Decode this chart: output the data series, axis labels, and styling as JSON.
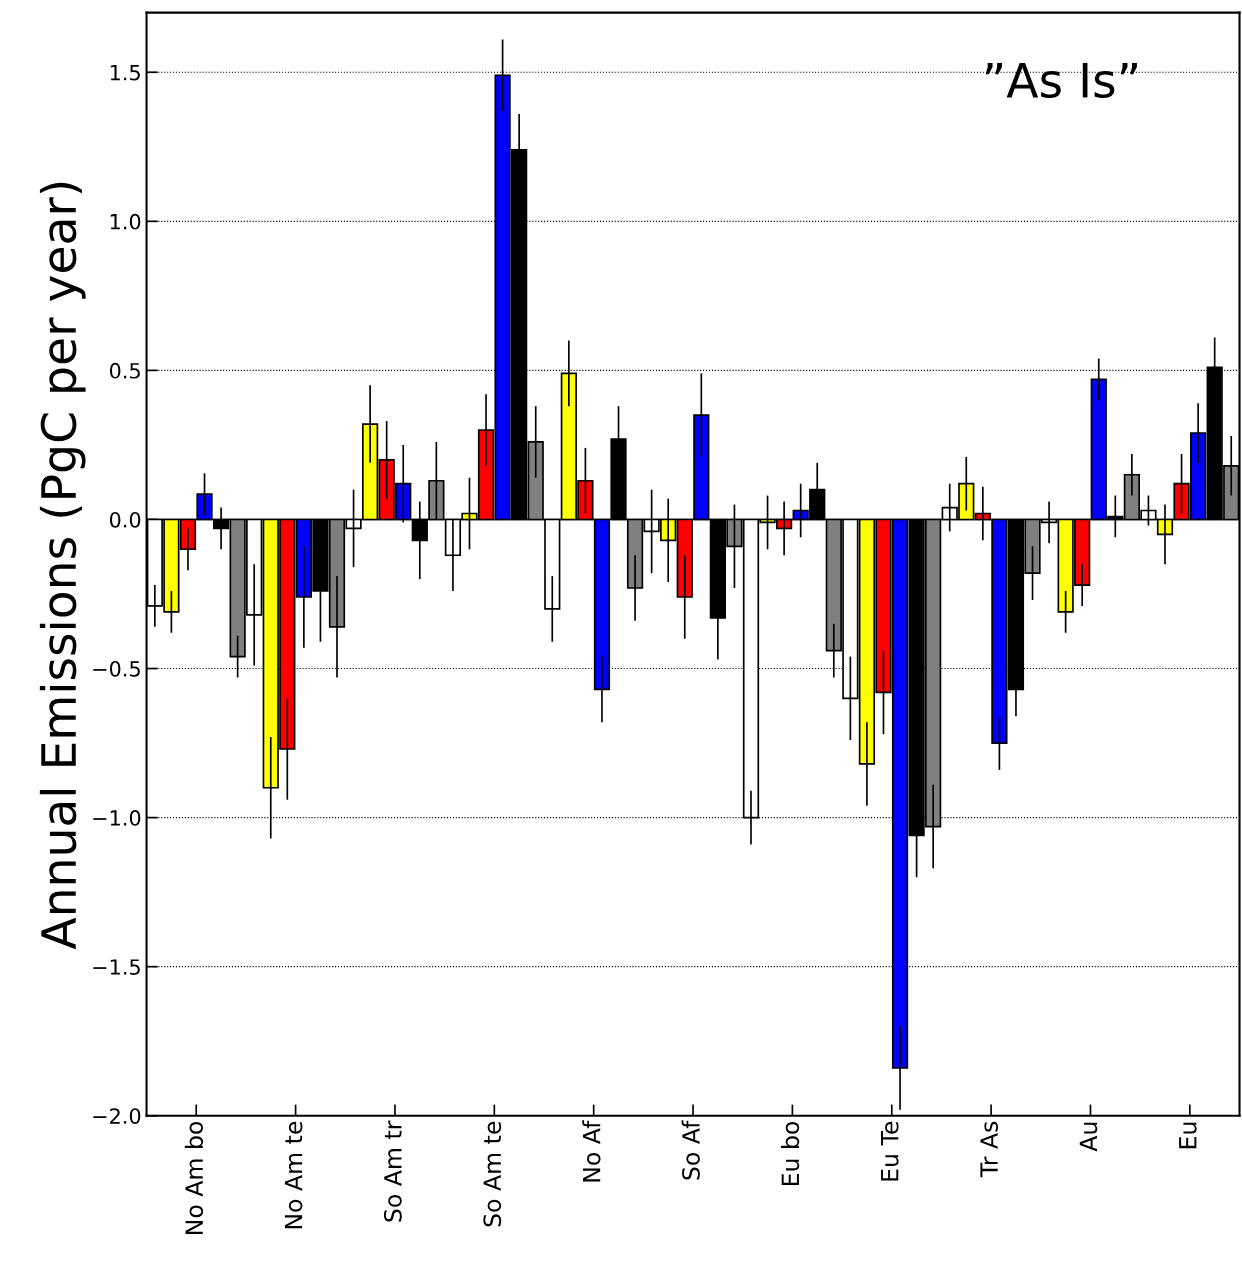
{
  "chart_data": {
    "type": "bar",
    "ylabel": "Annual Emissions (PgC per year)",
    "categories": [
      "No Am bo",
      "No Am te",
      "So Am tr",
      "So Am te",
      "No Af",
      "So Af",
      "Eu bo",
      "Eu Te",
      "Tr As",
      "Au",
      "Eu"
    ],
    "series": [
      {
        "color": "#ffffff",
        "values": [
          -0.29,
          -0.32,
          -0.03,
          -0.12,
          -0.3,
          -0.04,
          -1.0,
          -0.6,
          0.04,
          -0.01,
          0.03
        ],
        "errors": [
          0.07,
          0.17,
          0.13,
          0.12,
          0.11,
          0.14,
          0.09,
          0.14,
          0.08,
          0.07,
          0.05
        ]
      },
      {
        "color": "#ffff00",
        "values": [
          -0.31,
          -0.9,
          0.32,
          0.02,
          0.49,
          -0.07,
          -0.01,
          -0.82,
          0.12,
          -0.31,
          -0.05
        ],
        "errors": [
          0.07,
          0.17,
          0.13,
          0.12,
          0.11,
          0.14,
          0.09,
          0.14,
          0.09,
          0.07,
          0.1
        ]
      },
      {
        "color": "#ff0000",
        "values": [
          -0.1,
          -0.77,
          0.2,
          0.3,
          0.13,
          -0.26,
          -0.03,
          -0.58,
          0.02,
          -0.22,
          0.12
        ],
        "errors": [
          0.07,
          0.17,
          0.13,
          0.12,
          0.11,
          0.14,
          0.09,
          0.14,
          0.09,
          0.07,
          0.1
        ]
      },
      {
        "color": "#0000ff",
        "values": [
          0.085,
          -0.26,
          0.12,
          1.49,
          -0.57,
          0.35,
          0.03,
          -1.84,
          -0.75,
          0.47,
          0.29
        ],
        "errors": [
          0.07,
          0.17,
          0.13,
          0.12,
          0.11,
          0.14,
          0.09,
          0.14,
          0.09,
          0.07,
          0.1
        ]
      },
      {
        "color": "#000000",
        "values": [
          -0.03,
          -0.24,
          -0.07,
          1.24,
          0.27,
          -0.33,
          0.1,
          -1.06,
          -0.57,
          0.01,
          0.51
        ],
        "errors": [
          0.07,
          0.17,
          0.13,
          0.12,
          0.11,
          0.14,
          0.09,
          0.14,
          0.09,
          0.07,
          0.1
        ]
      },
      {
        "color": "#808080",
        "values": [
          -0.46,
          -0.36,
          0.13,
          0.26,
          -0.23,
          -0.09,
          -0.44,
          -1.03,
          -0.18,
          0.15,
          0.18
        ],
        "errors": [
          0.07,
          0.17,
          0.13,
          0.12,
          0.11,
          0.14,
          0.09,
          0.14,
          0.09,
          0.07,
          0.1
        ]
      }
    ],
    "ylim": [
      -2.0,
      1.7
    ],
    "yticks": [
      {
        "value": -2.0,
        "label": "−2.0"
      },
      {
        "value": -1.5,
        "label": "−1.5"
      },
      {
        "value": -1.0,
        "label": "−1.0"
      },
      {
        "value": -0.5,
        "label": "−0.5"
      },
      {
        "value": 0.0,
        "label": "0.0"
      },
      {
        "value": 0.5,
        "label": "0.5"
      },
      {
        "value": 1.0,
        "label": "1.0"
      },
      {
        "value": 1.5,
        "label": "1.5"
      }
    ],
    "grid": "y",
    "annotations": [
      "”As Is”"
    ]
  }
}
